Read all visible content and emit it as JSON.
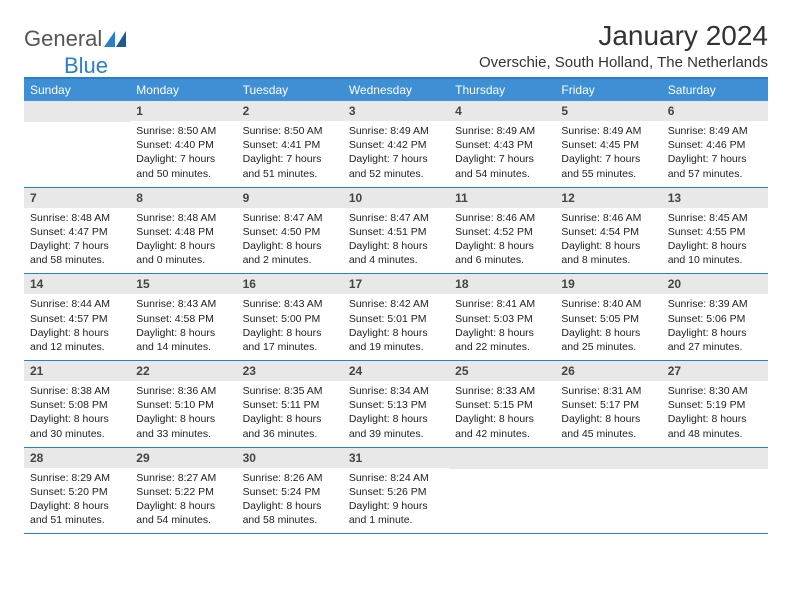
{
  "logo": {
    "text1": "General",
    "text2": "Blue"
  },
  "title": "January 2024",
  "location": "Overschie, South Holland, The Netherlands",
  "dayNames": [
    "Sunday",
    "Monday",
    "Tuesday",
    "Wednesday",
    "Thursday",
    "Friday",
    "Saturday"
  ],
  "colors": {
    "headerBlue": "#3e8fd4",
    "borderBlue": "#2a7fc9",
    "dayNumBg": "#e8e8e8"
  },
  "weeks": [
    [
      {
        "num": "",
        "sunrise": "",
        "sunset": "",
        "daylight": ""
      },
      {
        "num": "1",
        "sunrise": "Sunrise: 8:50 AM",
        "sunset": "Sunset: 4:40 PM",
        "daylight": "Daylight: 7 hours and 50 minutes."
      },
      {
        "num": "2",
        "sunrise": "Sunrise: 8:50 AM",
        "sunset": "Sunset: 4:41 PM",
        "daylight": "Daylight: 7 hours and 51 minutes."
      },
      {
        "num": "3",
        "sunrise": "Sunrise: 8:49 AM",
        "sunset": "Sunset: 4:42 PM",
        "daylight": "Daylight: 7 hours and 52 minutes."
      },
      {
        "num": "4",
        "sunrise": "Sunrise: 8:49 AM",
        "sunset": "Sunset: 4:43 PM",
        "daylight": "Daylight: 7 hours and 54 minutes."
      },
      {
        "num": "5",
        "sunrise": "Sunrise: 8:49 AM",
        "sunset": "Sunset: 4:45 PM",
        "daylight": "Daylight: 7 hours and 55 minutes."
      },
      {
        "num": "6",
        "sunrise": "Sunrise: 8:49 AM",
        "sunset": "Sunset: 4:46 PM",
        "daylight": "Daylight: 7 hours and 57 minutes."
      }
    ],
    [
      {
        "num": "7",
        "sunrise": "Sunrise: 8:48 AM",
        "sunset": "Sunset: 4:47 PM",
        "daylight": "Daylight: 7 hours and 58 minutes."
      },
      {
        "num": "8",
        "sunrise": "Sunrise: 8:48 AM",
        "sunset": "Sunset: 4:48 PM",
        "daylight": "Daylight: 8 hours and 0 minutes."
      },
      {
        "num": "9",
        "sunrise": "Sunrise: 8:47 AM",
        "sunset": "Sunset: 4:50 PM",
        "daylight": "Daylight: 8 hours and 2 minutes."
      },
      {
        "num": "10",
        "sunrise": "Sunrise: 8:47 AM",
        "sunset": "Sunset: 4:51 PM",
        "daylight": "Daylight: 8 hours and 4 minutes."
      },
      {
        "num": "11",
        "sunrise": "Sunrise: 8:46 AM",
        "sunset": "Sunset: 4:52 PM",
        "daylight": "Daylight: 8 hours and 6 minutes."
      },
      {
        "num": "12",
        "sunrise": "Sunrise: 8:46 AM",
        "sunset": "Sunset: 4:54 PM",
        "daylight": "Daylight: 8 hours and 8 minutes."
      },
      {
        "num": "13",
        "sunrise": "Sunrise: 8:45 AM",
        "sunset": "Sunset: 4:55 PM",
        "daylight": "Daylight: 8 hours and 10 minutes."
      }
    ],
    [
      {
        "num": "14",
        "sunrise": "Sunrise: 8:44 AM",
        "sunset": "Sunset: 4:57 PM",
        "daylight": "Daylight: 8 hours and 12 minutes."
      },
      {
        "num": "15",
        "sunrise": "Sunrise: 8:43 AM",
        "sunset": "Sunset: 4:58 PM",
        "daylight": "Daylight: 8 hours and 14 minutes."
      },
      {
        "num": "16",
        "sunrise": "Sunrise: 8:43 AM",
        "sunset": "Sunset: 5:00 PM",
        "daylight": "Daylight: 8 hours and 17 minutes."
      },
      {
        "num": "17",
        "sunrise": "Sunrise: 8:42 AM",
        "sunset": "Sunset: 5:01 PM",
        "daylight": "Daylight: 8 hours and 19 minutes."
      },
      {
        "num": "18",
        "sunrise": "Sunrise: 8:41 AM",
        "sunset": "Sunset: 5:03 PM",
        "daylight": "Daylight: 8 hours and 22 minutes."
      },
      {
        "num": "19",
        "sunrise": "Sunrise: 8:40 AM",
        "sunset": "Sunset: 5:05 PM",
        "daylight": "Daylight: 8 hours and 25 minutes."
      },
      {
        "num": "20",
        "sunrise": "Sunrise: 8:39 AM",
        "sunset": "Sunset: 5:06 PM",
        "daylight": "Daylight: 8 hours and 27 minutes."
      }
    ],
    [
      {
        "num": "21",
        "sunrise": "Sunrise: 8:38 AM",
        "sunset": "Sunset: 5:08 PM",
        "daylight": "Daylight: 8 hours and 30 minutes."
      },
      {
        "num": "22",
        "sunrise": "Sunrise: 8:36 AM",
        "sunset": "Sunset: 5:10 PM",
        "daylight": "Daylight: 8 hours and 33 minutes."
      },
      {
        "num": "23",
        "sunrise": "Sunrise: 8:35 AM",
        "sunset": "Sunset: 5:11 PM",
        "daylight": "Daylight: 8 hours and 36 minutes."
      },
      {
        "num": "24",
        "sunrise": "Sunrise: 8:34 AM",
        "sunset": "Sunset: 5:13 PM",
        "daylight": "Daylight: 8 hours and 39 minutes."
      },
      {
        "num": "25",
        "sunrise": "Sunrise: 8:33 AM",
        "sunset": "Sunset: 5:15 PM",
        "daylight": "Daylight: 8 hours and 42 minutes."
      },
      {
        "num": "26",
        "sunrise": "Sunrise: 8:31 AM",
        "sunset": "Sunset: 5:17 PM",
        "daylight": "Daylight: 8 hours and 45 minutes."
      },
      {
        "num": "27",
        "sunrise": "Sunrise: 8:30 AM",
        "sunset": "Sunset: 5:19 PM",
        "daylight": "Daylight: 8 hours and 48 minutes."
      }
    ],
    [
      {
        "num": "28",
        "sunrise": "Sunrise: 8:29 AM",
        "sunset": "Sunset: 5:20 PM",
        "daylight": "Daylight: 8 hours and 51 minutes."
      },
      {
        "num": "29",
        "sunrise": "Sunrise: 8:27 AM",
        "sunset": "Sunset: 5:22 PM",
        "daylight": "Daylight: 8 hours and 54 minutes."
      },
      {
        "num": "30",
        "sunrise": "Sunrise: 8:26 AM",
        "sunset": "Sunset: 5:24 PM",
        "daylight": "Daylight: 8 hours and 58 minutes."
      },
      {
        "num": "31",
        "sunrise": "Sunrise: 8:24 AM",
        "sunset": "Sunset: 5:26 PM",
        "daylight": "Daylight: 9 hours and 1 minute."
      },
      {
        "num": "",
        "sunrise": "",
        "sunset": "",
        "daylight": ""
      },
      {
        "num": "",
        "sunrise": "",
        "sunset": "",
        "daylight": ""
      },
      {
        "num": "",
        "sunrise": "",
        "sunset": "",
        "daylight": ""
      }
    ]
  ]
}
